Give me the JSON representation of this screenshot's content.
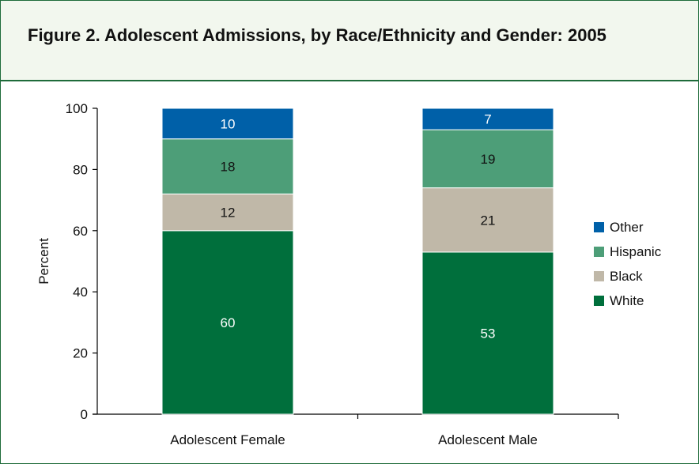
{
  "figure": {
    "title": "Figure 2. Adolescent Admissions, by Race/Ethnicity and Gender: 2005"
  },
  "chart_data": {
    "type": "bar",
    "stacked": true,
    "title": "Figure 2. Adolescent Admissions, by Race/Ethnicity and Gender: 2005",
    "xlabel": "",
    "ylabel": "Percent",
    "ylim": [
      0,
      100
    ],
    "yticks": [
      "0",
      "20",
      "40",
      "60",
      "80",
      "100"
    ],
    "categories": [
      "Adolescent Female",
      "Adolescent Male"
    ],
    "series": [
      {
        "name": "White",
        "values": [
          60,
          53
        ],
        "color": "#006f3c",
        "label_color": "#ffffff"
      },
      {
        "name": "Black",
        "values": [
          12,
          21
        ],
        "color": "#c0b8a8",
        "label_color": "#111111"
      },
      {
        "name": "Hispanic",
        "values": [
          18,
          19
        ],
        "color": "#4d9e78",
        "label_color": "#111111"
      },
      {
        "name": "Other",
        "values": [
          10,
          7
        ],
        "color": "#0060a8",
        "label_color": "#ffffff"
      }
    ],
    "legend": {
      "position": "right",
      "order": [
        "Other",
        "Hispanic",
        "Black",
        "White"
      ]
    },
    "grid": false
  }
}
